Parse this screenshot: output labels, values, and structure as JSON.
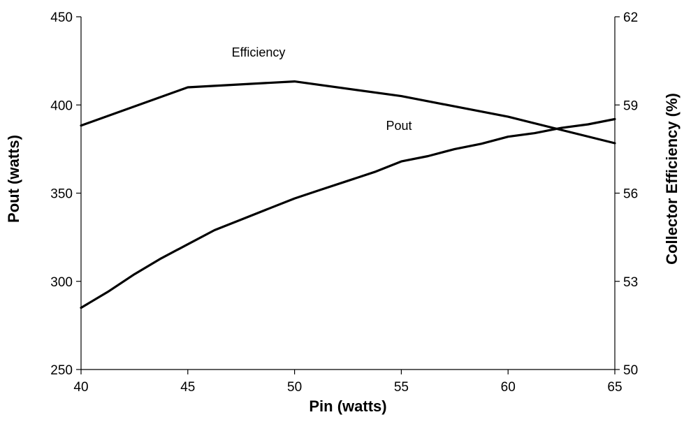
{
  "chart_data": {
    "type": "line",
    "xlabel": "Pin (watts)",
    "ylabel": "Pout (watts)",
    "y2label": "Collector Efficiency (%)",
    "xlim": [
      40,
      65
    ],
    "ylim": [
      250,
      450
    ],
    "y2lim": [
      50,
      62
    ],
    "xticks": [
      40,
      45,
      50,
      55,
      60,
      65
    ],
    "yticks": [
      250,
      300,
      350,
      400,
      450
    ],
    "y2ticks": [
      50,
      53,
      56,
      59,
      62
    ],
    "grid": false,
    "series": [
      {
        "name": "Efficiency",
        "axis": "right",
        "x": [
          40,
          45,
          50,
          55,
          60,
          65
        ],
        "y": [
          58.3,
          59.6,
          59.8,
          59.3,
          58.6,
          57.7
        ]
      },
      {
        "name": "Pout",
        "axis": "left",
        "x": [
          40,
          41.25,
          42.5,
          43.75,
          45,
          46.25,
          47.5,
          48.75,
          50,
          51.25,
          52.5,
          53.75,
          55,
          56.25,
          57.5,
          58.75,
          60,
          61.25,
          62.5,
          63.75,
          65
        ],
        "y": [
          285,
          294,
          304,
          313,
          321,
          329,
          335,
          341,
          347,
          352,
          357,
          362,
          368,
          371,
          375,
          378,
          382,
          384,
          387,
          389,
          392
        ]
      }
    ]
  }
}
